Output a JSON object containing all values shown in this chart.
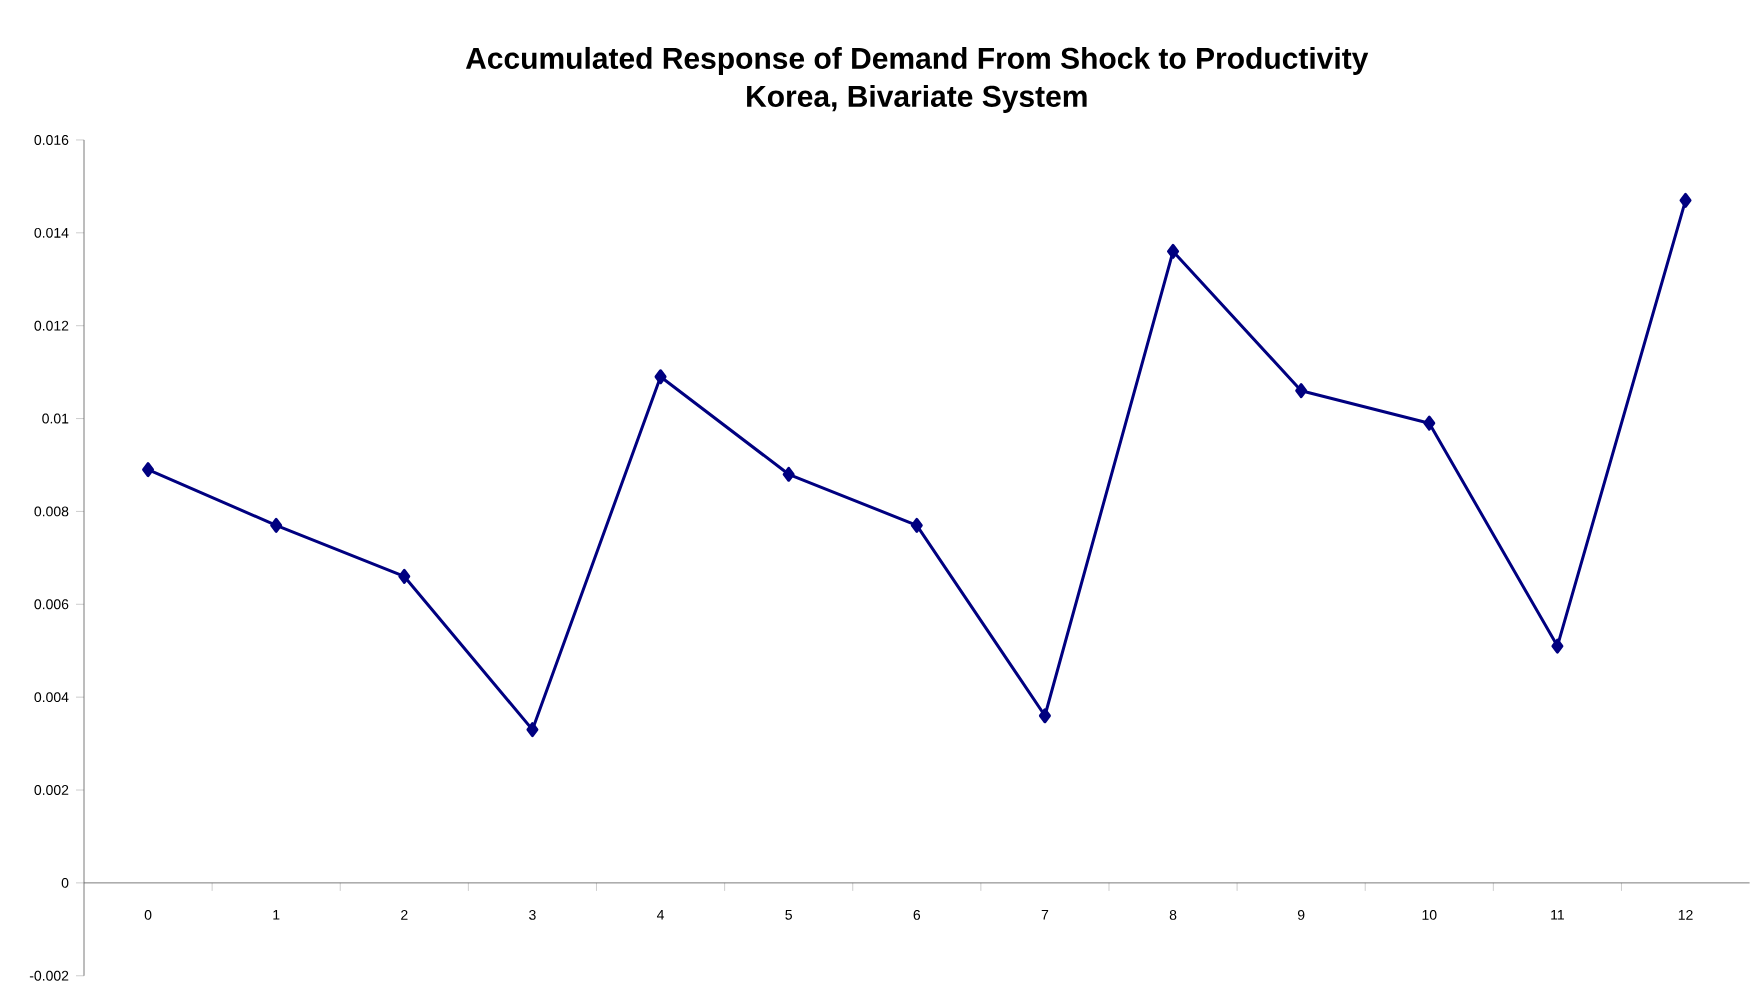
{
  "chart_data": {
    "type": "line",
    "title": "Accumulated Response of Demand From Shock to Productivity",
    "subtitle": "Korea, Bivariate System",
    "categories": [
      "0",
      "1",
      "2",
      "3",
      "4",
      "5",
      "6",
      "7",
      "8",
      "9",
      "10",
      "11",
      "12"
    ],
    "series": [
      {
        "color": "#000080",
        "values": [
          0.0089,
          0.0077,
          0.0066,
          0.0033,
          0.0109,
          0.0088,
          0.0077,
          0.0036,
          0.0136,
          0.0106,
          0.0099,
          0.0051,
          0.0147
        ]
      }
    ],
    "ylim": [
      -0.002,
      0.016
    ],
    "yticks": [
      -0.002,
      0,
      0.002,
      0.004,
      0.006,
      0.008,
      0.01,
      0.012,
      0.014,
      0.016
    ],
    "marker": "diamond",
    "line_style": "solid"
  }
}
